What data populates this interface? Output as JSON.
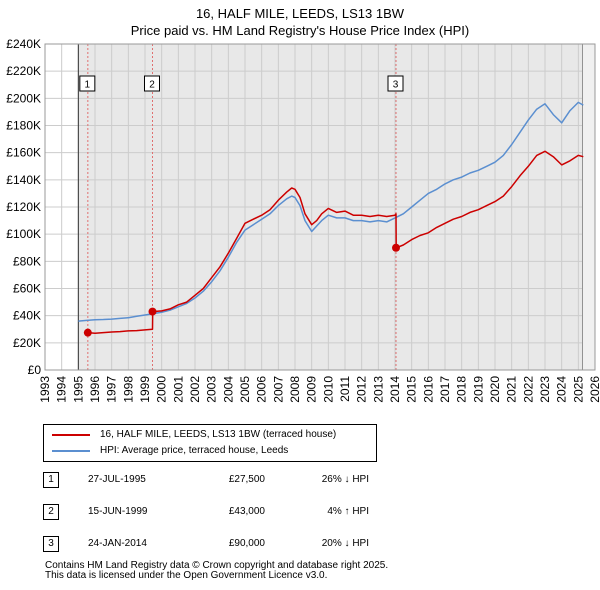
{
  "title": "16, HALF MILE, LEEDS, LS13 1BW",
  "subtitle": "Price paid vs. HM Land Registry's House Price Index (HPI)",
  "colors": {
    "property": "#cc0000",
    "hpi": "#5b8fd0",
    "grid": "#cccccc",
    "shade": "#e8e8e8",
    "marker": "#cc0000"
  },
  "legend": {
    "property_label": "16, HALF MILE, LEEDS, LS13 1BW (terraced house)",
    "hpi_label": "HPI: Average price, terraced house, Leeds"
  },
  "sales": [
    {
      "num": "1",
      "date": "27-JUL-1995",
      "price": "£27,500",
      "hpi": "26% ↓ HPI"
    },
    {
      "num": "2",
      "date": "15-JUN-1999",
      "price": "£43,000",
      "hpi": "4% ↑ HPI"
    },
    {
      "num": "3",
      "date": "24-JAN-2014",
      "price": "£90,000",
      "hpi": "20% ↓ HPI"
    }
  ],
  "footer": {
    "line1": "Contains HM Land Registry data © Crown copyright and database right 2025.",
    "line2": "This data is licensed under the Open Government Licence v3.0."
  },
  "chart_data": {
    "type": "line",
    "title": "16, HALF MILE, LEEDS, LS13 1BW",
    "xlim": [
      1993,
      2026
    ],
    "ylim": [
      0,
      240000
    ],
    "x_ticks": [
      1993,
      1994,
      1995,
      1996,
      1997,
      1998,
      1999,
      2000,
      2001,
      2002,
      2003,
      2004,
      2005,
      2006,
      2007,
      2008,
      2009,
      2010,
      2011,
      2012,
      2013,
      2014,
      2015,
      2016,
      2017,
      2018,
      2019,
      2020,
      2021,
      2022,
      2023,
      2024,
      2025,
      2026
    ],
    "y_ticks": [
      0,
      20000,
      40000,
      60000,
      80000,
      100000,
      120000,
      140000,
      160000,
      180000,
      200000,
      220000,
      240000
    ],
    "y_tick_labels": [
      "£0",
      "£20K",
      "£40K",
      "£60K",
      "£80K",
      "£100K",
      "£120K",
      "£140K",
      "£160K",
      "£180K",
      "£200K",
      "£220K",
      "£240K"
    ],
    "data_range_shade": {
      "start": 1995.0,
      "end": 2025.25
    },
    "series": [
      {
        "name": "16, HALF MILE, LEEDS, LS13 1BW (terraced house)",
        "x": [
          1995.57,
          1996.0,
          1996.5,
          1997.0,
          1997.5,
          1998.0,
          1998.5,
          1999.0,
          1999.45,
          1999.46,
          2000.0,
          2000.5,
          2001.0,
          2001.5,
          2002.0,
          2002.5,
          2003.0,
          2003.5,
          2004.0,
          2004.5,
          2005.0,
          2005.5,
          2006.0,
          2006.5,
          2007.0,
          2007.5,
          2007.8,
          2008.0,
          2008.3,
          2008.6,
          2009.0,
          2009.3,
          2009.6,
          2010.0,
          2010.5,
          2011.0,
          2011.5,
          2012.0,
          2012.5,
          2013.0,
          2013.5,
          2014.0,
          2014.06,
          2014.07,
          2014.5,
          2015.0,
          2015.5,
          2016.0,
          2016.5,
          2017.0,
          2017.5,
          2018.0,
          2018.5,
          2019.0,
          2019.5,
          2020.0,
          2020.5,
          2021.0,
          2021.5,
          2022.0,
          2022.5,
          2023.0,
          2023.5,
          2024.0,
          2024.5,
          2025.0,
          2025.3
        ],
        "values": [
          27500,
          27000,
          27500,
          28000,
          28300,
          28800,
          29000,
          29500,
          30000,
          43000,
          43500,
          45000,
          48000,
          50000,
          55000,
          60000,
          68000,
          76000,
          86000,
          97000,
          108000,
          111000,
          114000,
          118000,
          125000,
          131000,
          134000,
          133000,
          127000,
          115000,
          107000,
          110000,
          115000,
          119000,
          116000,
          117000,
          114000,
          114000,
          113000,
          114000,
          113000,
          114000,
          115000,
          90000,
          92000,
          96000,
          99000,
          101000,
          105000,
          108000,
          111000,
          113000,
          116000,
          118000,
          121000,
          124000,
          128000,
          135000,
          143000,
          150000,
          158000,
          161000,
          157000,
          151000,
          154000,
          158000,
          157000
        ]
      },
      {
        "name": "HPI: Average price, terraced house, Leeds",
        "x": [
          1995.0,
          1995.5,
          1996.0,
          1996.5,
          1997.0,
          1997.5,
          1998.0,
          1998.5,
          1999.0,
          1999.5,
          2000.0,
          2000.5,
          2001.0,
          2001.5,
          2002.0,
          2002.5,
          2003.0,
          2003.5,
          2004.0,
          2004.5,
          2005.0,
          2005.5,
          2006.0,
          2006.5,
          2007.0,
          2007.5,
          2007.8,
          2008.0,
          2008.3,
          2008.6,
          2009.0,
          2009.3,
          2009.6,
          2010.0,
          2010.5,
          2011.0,
          2011.5,
          2012.0,
          2012.5,
          2013.0,
          2013.5,
          2014.0,
          2014.5,
          2015.0,
          2015.5,
          2016.0,
          2016.5,
          2017.0,
          2017.5,
          2018.0,
          2018.5,
          2019.0,
          2019.5,
          2020.0,
          2020.5,
          2021.0,
          2021.5,
          2022.0,
          2022.5,
          2023.0,
          2023.5,
          2024.0,
          2024.5,
          2025.0,
          2025.3
        ],
        "values": [
          36000,
          36500,
          37000,
          37200,
          37500,
          38000,
          38500,
          39500,
          40500,
          41500,
          42500,
          44000,
          46500,
          49000,
          53000,
          58000,
          65000,
          73000,
          83000,
          94000,
          103000,
          107000,
          111000,
          115000,
          121000,
          126000,
          128000,
          127000,
          121000,
          110000,
          102000,
          106000,
          110000,
          114000,
          112000,
          112000,
          110000,
          110000,
          109000,
          110000,
          109000,
          112000,
          115000,
          120000,
          125000,
          130000,
          133000,
          137000,
          140000,
          142000,
          145000,
          147000,
          150000,
          153000,
          158000,
          166000,
          175000,
          184000,
          192000,
          196000,
          188000,
          182000,
          191000,
          197000,
          195000
        ]
      }
    ],
    "sale_markers": [
      {
        "label": "1",
        "x": 1995.57,
        "y": 27500
      },
      {
        "label": "2",
        "x": 1999.45,
        "y": 43000
      },
      {
        "label": "3",
        "x": 2014.06,
        "y": 90000
      }
    ]
  }
}
